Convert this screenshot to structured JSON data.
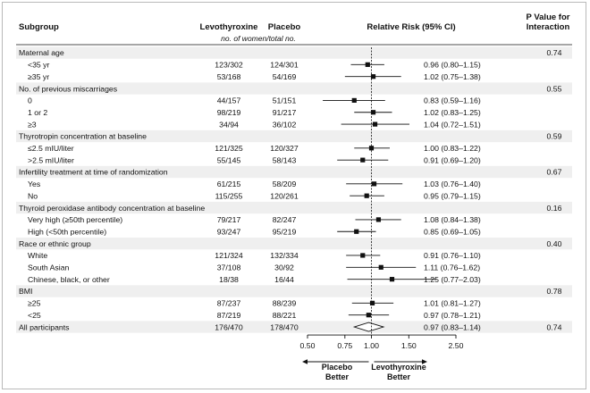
{
  "headers": {
    "subgroup": "Subgroup",
    "levothyroxine": "Levothyroxine",
    "placebo": "Placebo",
    "unit": "no. of women/total no.",
    "rr": "Relative Risk (95% CI)",
    "pval_line1": "P Value for",
    "pval_line2": "Interaction"
  },
  "axis_ticks": [
    "0.50",
    "0.75",
    "1.00",
    "1.50",
    "2.50"
  ],
  "direction_labels": {
    "left_line1": "Placebo",
    "left_line2": "Better",
    "right_line1": "Levothyroxine",
    "right_line2": "Better"
  },
  "colors": {
    "band": "#efefef",
    "ink": "#111111"
  },
  "chart_data": {
    "type": "forest",
    "xscale": "log",
    "xlim": [
      0.5,
      2.5
    ],
    "reference_line": 1.0,
    "rows": [
      {
        "kind": "group",
        "label": "Maternal age",
        "p": "0.74"
      },
      {
        "kind": "sub",
        "label": "<35 yr",
        "levo": "123/302",
        "placebo": "124/301",
        "rr": 0.96,
        "lo": 0.8,
        "hi": 1.15,
        "ci_text": "0.96 (0.80–1.15)"
      },
      {
        "kind": "sub",
        "label": "≥35 yr",
        "levo": "53/168",
        "placebo": "54/169",
        "rr": 1.02,
        "lo": 0.75,
        "hi": 1.38,
        "ci_text": "1.02 (0.75–1.38)"
      },
      {
        "kind": "group",
        "label": "No. of previous miscarriages",
        "p": "0.55"
      },
      {
        "kind": "sub",
        "label": "0",
        "levo": "44/157",
        "placebo": "51/151",
        "rr": 0.83,
        "lo": 0.59,
        "hi": 1.16,
        "ci_text": "0.83 (0.59–1.16)"
      },
      {
        "kind": "sub",
        "label": "1 or 2",
        "levo": "98/219",
        "placebo": "91/217",
        "rr": 1.02,
        "lo": 0.83,
        "hi": 1.25,
        "ci_text": "1.02 (0.83–1.25)"
      },
      {
        "kind": "sub",
        "label": "≥3",
        "levo": "34/94",
        "placebo": "36/102",
        "rr": 1.04,
        "lo": 0.72,
        "hi": 1.51,
        "ci_text": "1.04 (0.72–1.51)"
      },
      {
        "kind": "group",
        "label": "Thyrotropin concentration at baseline",
        "p": "0.59"
      },
      {
        "kind": "sub",
        "label": "≤2.5 mIU/liter",
        "levo": "121/325",
        "placebo": "120/327",
        "rr": 1.0,
        "lo": 0.83,
        "hi": 1.22,
        "ci_text": "1.00 (0.83–1.22)"
      },
      {
        "kind": "sub",
        "label": ">2.5 mIU/liter",
        "levo": "55/145",
        "placebo": "58/143",
        "rr": 0.91,
        "lo": 0.69,
        "hi": 1.2,
        "ci_text": "0.91 (0.69–1.20)"
      },
      {
        "kind": "group",
        "label": "Infertility treatment at time of randomization",
        "p": "0.67"
      },
      {
        "kind": "sub",
        "label": "Yes",
        "levo": "61/215",
        "placebo": "58/209",
        "rr": 1.03,
        "lo": 0.76,
        "hi": 1.4,
        "ci_text": "1.03 (0.76–1.40)"
      },
      {
        "kind": "sub",
        "label": "No",
        "levo": "115/255",
        "placebo": "120/261",
        "rr": 0.95,
        "lo": 0.79,
        "hi": 1.15,
        "ci_text": "0.95 (0.79–1.15)"
      },
      {
        "kind": "group",
        "label": "Thyroid peroxidase antibody concentration at baseline",
        "p": "0.16"
      },
      {
        "kind": "sub",
        "label": "Very high (≥50th percentile)",
        "levo": "79/217",
        "placebo": "82/247",
        "rr": 1.08,
        "lo": 0.84,
        "hi": 1.38,
        "ci_text": "1.08 (0.84–1.38)"
      },
      {
        "kind": "sub",
        "label": "High (<50th percentile)",
        "levo": "93/247",
        "placebo": "95/219",
        "rr": 0.85,
        "lo": 0.69,
        "hi": 1.05,
        "ci_text": "0.85 (0.69–1.05)"
      },
      {
        "kind": "group",
        "label": "Race or ethnic group",
        "p": "0.40"
      },
      {
        "kind": "sub",
        "label": "White",
        "levo": "121/324",
        "placebo": "132/334",
        "rr": 0.91,
        "lo": 0.76,
        "hi": 1.1,
        "ci_text": "0.91 (0.76–1.10)"
      },
      {
        "kind": "sub",
        "label": "South Asian",
        "levo": "37/108",
        "placebo": "30/92",
        "rr": 1.11,
        "lo": 0.76,
        "hi": 1.62,
        "ci_text": "1.11 (0.76–1.62)"
      },
      {
        "kind": "sub",
        "label": "Chinese, black, or other",
        "levo": "18/38",
        "placebo": "16/44",
        "rr": 1.25,
        "lo": 0.77,
        "hi": 2.03,
        "ci_text": "1.25 (0.77–2.03)"
      },
      {
        "kind": "group",
        "label": "BMI",
        "p": "0.78"
      },
      {
        "kind": "sub",
        "label": "≥25",
        "levo": "87/237",
        "placebo": "88/239",
        "rr": 1.01,
        "lo": 0.81,
        "hi": 1.27,
        "ci_text": "1.01 (0.81–1.27)"
      },
      {
        "kind": "sub",
        "label": "<25",
        "levo": "87/219",
        "placebo": "88/221",
        "rr": 0.97,
        "lo": 0.78,
        "hi": 1.21,
        "ci_text": "0.97 (0.78–1.21)"
      },
      {
        "kind": "overall",
        "label": "All participants",
        "levo": "176/470",
        "placebo": "178/470",
        "rr": 0.97,
        "lo": 0.83,
        "hi": 1.14,
        "ci_text": "0.97 (0.83–1.14)",
        "p": "0.74"
      }
    ]
  }
}
